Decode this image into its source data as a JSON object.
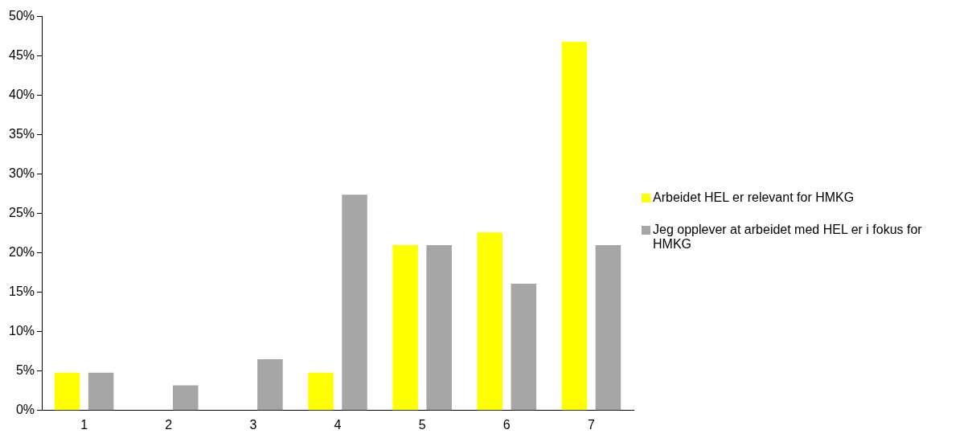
{
  "chart_data": {
    "type": "bar",
    "categories": [
      "1",
      "2",
      "3",
      "4",
      "5",
      "6",
      "7"
    ],
    "series": [
      {
        "name": "Arbeidet HEL er relevant for HMKG",
        "color": "#ffff00",
        "values": [
          4.8,
          0,
          0,
          4.8,
          21.0,
          22.6,
          46.8
        ]
      },
      {
        "name": "Jeg opplever at arbeidet med HEL er i fokus for HMKG",
        "color": "#a6a6a6",
        "values": [
          4.8,
          3.2,
          6.5,
          27.4,
          21.0,
          16.1,
          21.0
        ]
      }
    ],
    "ylim": [
      0,
      50
    ],
    "yticks": [
      {
        "value": 0,
        "label": "0%"
      },
      {
        "value": 5,
        "label": "5%"
      },
      {
        "value": 10,
        "label": "10%"
      },
      {
        "value": 15,
        "label": "15%"
      },
      {
        "value": 20,
        "label": "20%"
      },
      {
        "value": 25,
        "label": "25%"
      },
      {
        "value": 30,
        "label": "30%"
      },
      {
        "value": 35,
        "label": "35%"
      },
      {
        "value": 40,
        "label": "40%"
      },
      {
        "value": 45,
        "label": "45%"
      },
      {
        "value": 50,
        "label": "50%"
      }
    ],
    "grid": false,
    "legend": "right"
  }
}
